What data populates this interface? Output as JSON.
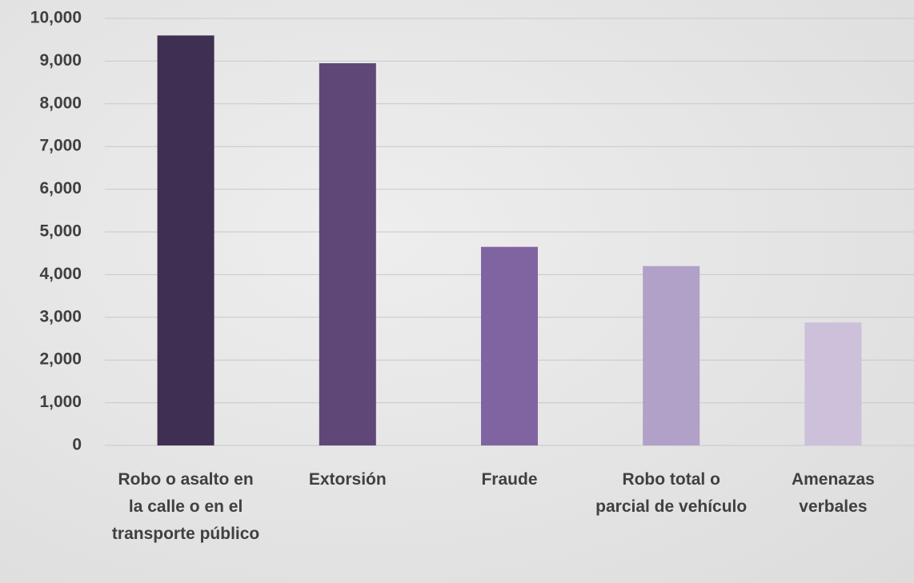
{
  "chart_data": {
    "type": "bar",
    "categories": [
      "Robo o asalto en la calle o en el transporte público",
      "Extorsión",
      "Fraude",
      "Robo total o parcial de vehículo",
      "Amenazas verbales"
    ],
    "values": [
      9600,
      8950,
      4650,
      4200,
      2880
    ],
    "colors": [
      "#3f2f52",
      "#5f4878",
      "#8064a2",
      "#b1a0c7",
      "#ccc0da"
    ],
    "ylim": [
      0,
      10000
    ],
    "yticks": [
      0,
      {
        "value": 1000,
        "label": "1,000"
      },
      {
        "value": 2000,
        "label": "2,000"
      },
      {
        "value": 3000,
        "label": "3,000"
      },
      {
        "value": 4000,
        "label": "4,000"
      },
      {
        "value": 5000,
        "label": "5,000"
      },
      {
        "value": 6000,
        "label": "6,000"
      },
      {
        "value": 7000,
        "label": "7,000"
      },
      {
        "value": 8000,
        "label": "8,000"
      },
      {
        "value": 9000,
        "label": "9,000"
      },
      {
        "value": 10000,
        "label": "10,000"
      }
    ],
    "grid": true
  }
}
